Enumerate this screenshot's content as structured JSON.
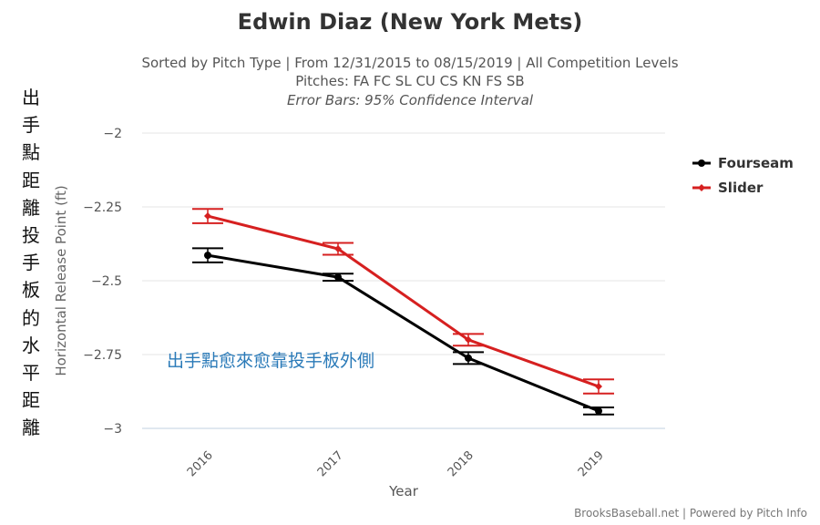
{
  "header": {
    "title": "Edwin Diaz (New York Mets)",
    "subtitle1": "Sorted by Pitch Type | From 12/31/2015 to 08/15/2019 | All Competition Levels",
    "subtitle2": "Pitches: FA FC SL CU CS KN FS SB",
    "subtitle3": "Error Bars: 95% Confidence Interval"
  },
  "side_label": "出手點距離投手板的水平距離",
  "annotation": "出手點愈來愈靠投手板外側",
  "credit": "BrooksBaseball.net | Powered by Pitch Info",
  "chart_data": {
    "type": "line",
    "title": "Edwin Diaz (New York Mets)",
    "xlabel": "Year",
    "ylabel": "Horizontal Release Point (ft)",
    "categories": [
      "2016",
      "2017",
      "2018",
      "2019"
    ],
    "ylim": [
      -3,
      -2
    ],
    "yticks": [
      -2,
      -2.25,
      -2.5,
      -2.75,
      -3
    ],
    "ytick_labels": [
      "−2",
      "−2.25",
      "−2.5",
      "−2.75",
      "−3"
    ],
    "grid": true,
    "legend": "right",
    "series": [
      {
        "name": "Fourseam",
        "color": "#000000",
        "values": [
          -2.414,
          -2.488,
          -2.762,
          -2.941
        ],
        "err": [
          0.024,
          0.012,
          0.02,
          0.012
        ]
      },
      {
        "name": "Slider",
        "color": "#d62020",
        "values": [
          -2.281,
          -2.392,
          -2.7,
          -2.858
        ],
        "err": [
          0.024,
          0.02,
          0.02,
          0.024
        ]
      }
    ]
  }
}
